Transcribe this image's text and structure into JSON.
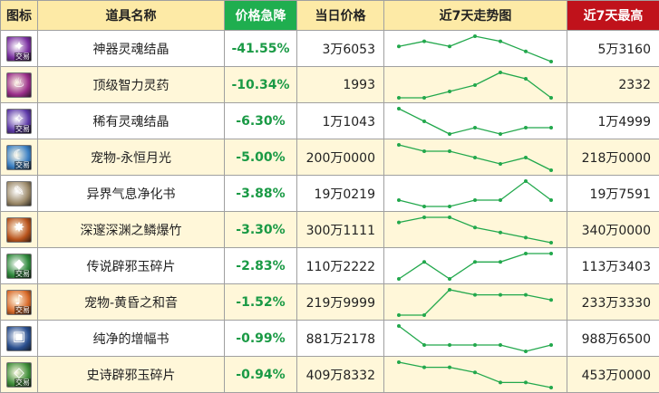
{
  "headers": {
    "icon": "图标",
    "name": "道具名称",
    "drop": "价格急降",
    "price": "当日价格",
    "trend": "近7天走势图",
    "high": "近7天最高"
  },
  "colors": {
    "header_bg": "#fdeaa6",
    "drop_header_bg": "#1fae4f",
    "high_header_bg": "#c0121b",
    "drop_text": "#1a9a45",
    "spark_line": "#22a84c",
    "alt_row_bg": "#fff7d9"
  },
  "items": [
    {
      "name": "神器灵魂结晶",
      "drop": "-41.55%",
      "price": "3万6053",
      "high": "5万3160",
      "icon": "purple-crystal-icon",
      "icon_color": "#7a2fa0",
      "tag": "交易",
      "trend": [
        3,
        4,
        3,
        5,
        4,
        2,
        0
      ]
    },
    {
      "name": "顶级智力灵药",
      "drop": "-10.34%",
      "price": "1993",
      "high": "2332",
      "icon": "elixir-bottle-icon",
      "icon_color": "#9a2d8a",
      "tag": "",
      "trend": [
        1,
        1,
        2,
        3,
        5,
        4,
        1
      ]
    },
    {
      "name": "稀有灵魂结晶",
      "drop": "-6.30%",
      "price": "1万1043",
      "high": "1万4999",
      "icon": "soul-crystal-icon",
      "icon_color": "#5e3aa8",
      "tag": "交易",
      "trend": [
        5,
        3,
        1,
        2,
        1,
        2,
        2
      ]
    },
    {
      "name": "宠物-永恒月光",
      "drop": "-5.00%",
      "price": "200万0000",
      "high": "218万0000",
      "icon": "moonlight-orb-icon",
      "icon_color": "#3a7fc4",
      "tag": "交易",
      "trend": [
        5,
        4,
        4,
        3,
        2,
        3,
        1
      ]
    },
    {
      "name": "异界气息净化书",
      "drop": "-3.88%",
      "price": "19万0219",
      "high": "19万7591",
      "icon": "scroll-icon",
      "icon_color": "#9c8a6a",
      "tag": "",
      "trend": [
        2,
        1,
        1,
        2,
        2,
        5,
        2
      ]
    },
    {
      "name": "深邃深渊之鳞爆竹",
      "drop": "-3.30%",
      "price": "300万1111",
      "high": "340万0000",
      "icon": "firecracker-icon",
      "icon_color": "#b8531c",
      "tag": "",
      "trend": [
        4,
        5,
        5,
        3,
        2,
        1,
        0
      ]
    },
    {
      "name": "传说辟邪玉碎片",
      "drop": "-2.83%",
      "price": "110万2222",
      "high": "113万3403",
      "icon": "green-jade-icon",
      "icon_color": "#2f8a3c",
      "tag": "交易",
      "trend": [
        2,
        4,
        2,
        4,
        4,
        5,
        5
      ]
    },
    {
      "name": "宠物-黄昏之和音",
      "drop": "-1.52%",
      "price": "219万9999",
      "high": "233万3330",
      "icon": "twilight-orb-icon",
      "icon_color": "#d86a2a",
      "tag": "交易",
      "trend": [
        0,
        0,
        5,
        4,
        4,
        4,
        3
      ]
    },
    {
      "name": "纯净的增幅书",
      "drop": "-0.99%",
      "price": "881万2178",
      "high": "988万6500",
      "icon": "amplify-book-icon",
      "icon_color": "#2a4f8f",
      "tag": "",
      "trend": [
        5,
        2,
        2,
        2,
        2,
        1,
        2
      ]
    },
    {
      "name": "史诗辟邪玉碎片",
      "drop": "-0.94%",
      "price": "409万8332",
      "high": "453万0000",
      "icon": "jade-fragment-icon",
      "icon_color": "#3f8f3a",
      "tag": "交易",
      "trend": [
        5,
        4,
        4,
        3,
        1,
        1,
        0
      ]
    }
  ]
}
